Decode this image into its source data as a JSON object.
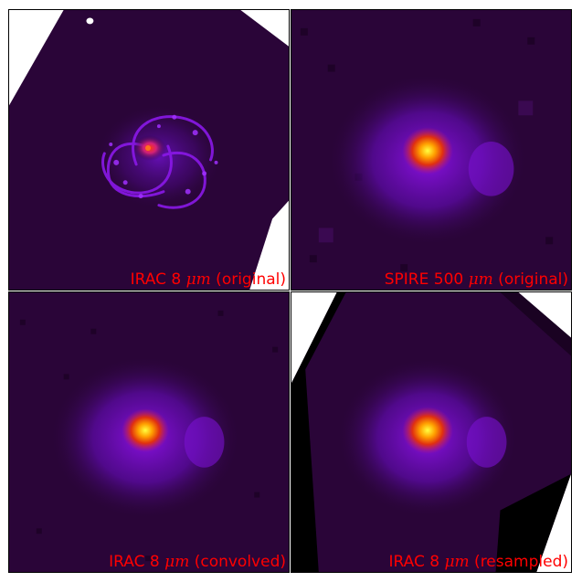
{
  "panels": [
    {
      "caption": {
        "prefix": "IRAC 8 ",
        "unit": "μm",
        "suffix": " (original)"
      }
    },
    {
      "caption": {
        "prefix": "SPIRE 500 ",
        "unit": "μm",
        "suffix": " (original)"
      }
    },
    {
      "caption": {
        "prefix": "IRAC 8 ",
        "unit": "μm",
        "suffix": " (convolved)"
      }
    },
    {
      "caption": {
        "prefix": "IRAC 8 ",
        "unit": "μm",
        "suffix": " (resampled)"
      }
    }
  ],
  "colors": {
    "background": "#2a0538",
    "caption": "#ff0000",
    "colormap": [
      "#000000",
      "#2a0538",
      "#5a0aa0",
      "#8a10e0",
      "#c01a70",
      "#e03010",
      "#ff9000",
      "#ffff30"
    ]
  }
}
